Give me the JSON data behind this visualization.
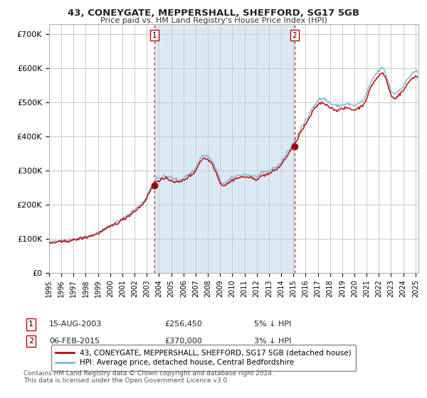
{
  "title": "43, CONEYGATE, MEPPERSHALL, SHEFFORD, SG17 5GB",
  "subtitle": "Price paid vs. HM Land Registry's House Price Index (HPI)",
  "sale1_price": 256450,
  "sale2_price": 370000,
  "legend_line1": "43, CONEYGATE, MEPPERSHALL, SHEFFORD, SG17 5GB (detached house)",
  "legend_line2": "HPI: Average price, detached house, Central Bedfordshire",
  "footer1": "Contains HM Land Registry data © Crown copyright and database right 2024.",
  "footer2": "This data is licensed under the Open Government Licence v3.0.",
  "hpi_line_color": "#7fb8d8",
  "price_line_color": "#cc0000",
  "dot_color": "#990000",
  "vline_color": "#cc0000",
  "shading_color": "#daeaf5",
  "bg_color": "#ffffff",
  "grid_color": "#c8c8c8",
  "ylim": [
    0,
    730000
  ],
  "yticks": [
    0,
    100000,
    200000,
    300000,
    400000,
    500000,
    600000,
    700000
  ],
  "ytick_labels": [
    "£0",
    "£100K",
    "£200K",
    "£300K",
    "£400K",
    "£500K",
    "£600K",
    "£700K"
  ]
}
